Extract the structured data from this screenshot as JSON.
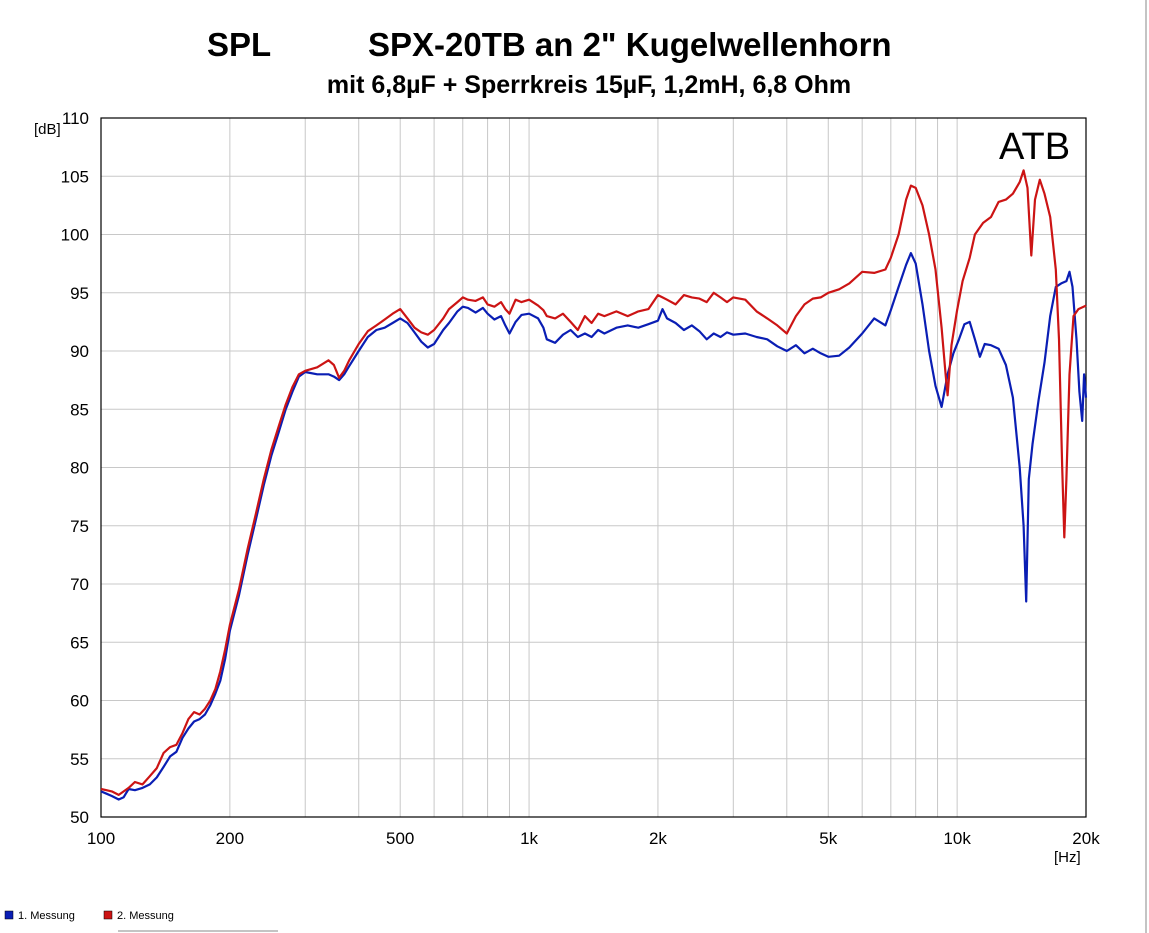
{
  "chart_data": {
    "type": "line",
    "title_left": "SPL",
    "title": "SPX-20TB  an 2\" Kugelwellenhorn",
    "subtitle": "mit 6,8µF + Sperrkreis 15µF, 1,2mH, 6,8 Ohm",
    "annotation": "ATB",
    "ylabel": "[dB]",
    "xlabel": "[Hz]",
    "x_scale": "log",
    "xlim": [
      100,
      20000
    ],
    "ylim": [
      50,
      110
    ],
    "grid": true,
    "legend_position": "bottom-left",
    "x_ticks": [
      {
        "value": 100,
        "label": "100"
      },
      {
        "value": 200,
        "label": "200"
      },
      {
        "value": 500,
        "label": "500"
      },
      {
        "value": 1000,
        "label": "1k"
      },
      {
        "value": 2000,
        "label": "2k"
      },
      {
        "value": 5000,
        "label": "5k"
      },
      {
        "value": 10000,
        "label": "10k"
      },
      {
        "value": 20000,
        "label": "20k"
      }
    ],
    "y_ticks": [
      {
        "value": 110,
        "label": "110"
      },
      {
        "value": 105,
        "label": "105"
      },
      {
        "value": 100,
        "label": "100"
      },
      {
        "value": 95,
        "label": "95"
      },
      {
        "value": 90,
        "label": "90"
      },
      {
        "value": 85,
        "label": "85"
      },
      {
        "value": 80,
        "label": "80"
      },
      {
        "value": 75,
        "label": "75"
      },
      {
        "value": 70,
        "label": "70"
      },
      {
        "value": 65,
        "label": "65"
      },
      {
        "value": 60,
        "label": "60"
      },
      {
        "value": 55,
        "label": "55"
      },
      {
        "value": 50,
        "label": "50"
      }
    ],
    "series": [
      {
        "name": "1. Messung",
        "color": "#0a1eb4",
        "points": [
          [
            100,
            52.2
          ],
          [
            103,
            52.0
          ],
          [
            106,
            51.8
          ],
          [
            110,
            51.5
          ],
          [
            113,
            51.7
          ],
          [
            116,
            52.4
          ],
          [
            120,
            52.3
          ],
          [
            125,
            52.5
          ],
          [
            130,
            52.8
          ],
          [
            135,
            53.4
          ],
          [
            140,
            54.3
          ],
          [
            145,
            55.2
          ],
          [
            150,
            55.6
          ],
          [
            155,
            56.8
          ],
          [
            160,
            57.6
          ],
          [
            165,
            58.2
          ],
          [
            170,
            58.4
          ],
          [
            175,
            58.8
          ],
          [
            180,
            59.6
          ],
          [
            185,
            60.6
          ],
          [
            190,
            61.7
          ],
          [
            195,
            63.6
          ],
          [
            200,
            66.0
          ],
          [
            210,
            69.0
          ],
          [
            220,
            72.5
          ],
          [
            230,
            75.5
          ],
          [
            240,
            78.5
          ],
          [
            250,
            81.0
          ],
          [
            260,
            83.0
          ],
          [
            270,
            85.0
          ],
          [
            280,
            86.5
          ],
          [
            290,
            87.8
          ],
          [
            300,
            88.2
          ],
          [
            320,
            88.0
          ],
          [
            340,
            88.0
          ],
          [
            350,
            87.8
          ],
          [
            360,
            87.5
          ],
          [
            370,
            88.0
          ],
          [
            380,
            88.7
          ],
          [
            400,
            90.0
          ],
          [
            420,
            91.2
          ],
          [
            440,
            91.8
          ],
          [
            460,
            92.0
          ],
          [
            480,
            92.4
          ],
          [
            500,
            92.8
          ],
          [
            520,
            92.4
          ],
          [
            540,
            91.6
          ],
          [
            560,
            90.8
          ],
          [
            580,
            90.3
          ],
          [
            600,
            90.6
          ],
          [
            630,
            91.8
          ],
          [
            650,
            92.4
          ],
          [
            680,
            93.4
          ],
          [
            700,
            93.8
          ],
          [
            720,
            93.7
          ],
          [
            750,
            93.3
          ],
          [
            780,
            93.7
          ],
          [
            800,
            93.2
          ],
          [
            830,
            92.7
          ],
          [
            860,
            93.0
          ],
          [
            880,
            92.2
          ],
          [
            900,
            91.5
          ],
          [
            930,
            92.5
          ],
          [
            960,
            93.1
          ],
          [
            1000,
            93.2
          ],
          [
            1050,
            92.8
          ],
          [
            1080,
            92.0
          ],
          [
            1100,
            91.0
          ],
          [
            1150,
            90.7
          ],
          [
            1200,
            91.4
          ],
          [
            1250,
            91.8
          ],
          [
            1300,
            91.2
          ],
          [
            1350,
            91.5
          ],
          [
            1400,
            91.2
          ],
          [
            1450,
            91.8
          ],
          [
            1500,
            91.5
          ],
          [
            1600,
            92.0
          ],
          [
            1700,
            92.2
          ],
          [
            1800,
            92.0
          ],
          [
            1900,
            92.3
          ],
          [
            2000,
            92.6
          ],
          [
            2050,
            93.6
          ],
          [
            2100,
            92.8
          ],
          [
            2200,
            92.4
          ],
          [
            2300,
            91.8
          ],
          [
            2400,
            92.2
          ],
          [
            2500,
            91.7
          ],
          [
            2600,
            91.0
          ],
          [
            2700,
            91.5
          ],
          [
            2800,
            91.2
          ],
          [
            2900,
            91.6
          ],
          [
            3000,
            91.4
          ],
          [
            3200,
            91.5
          ],
          [
            3400,
            91.2
          ],
          [
            3600,
            91.0
          ],
          [
            3800,
            90.4
          ],
          [
            4000,
            90.0
          ],
          [
            4200,
            90.5
          ],
          [
            4400,
            89.8
          ],
          [
            4600,
            90.2
          ],
          [
            4800,
            89.8
          ],
          [
            5000,
            89.5
          ],
          [
            5300,
            89.6
          ],
          [
            5600,
            90.3
          ],
          [
            6000,
            91.5
          ],
          [
            6400,
            92.8
          ],
          [
            6800,
            92.2
          ],
          [
            7000,
            93.5
          ],
          [
            7300,
            95.5
          ],
          [
            7600,
            97.4
          ],
          [
            7800,
            98.4
          ],
          [
            8000,
            97.5
          ],
          [
            8300,
            94.0
          ],
          [
            8600,
            90.0
          ],
          [
            8900,
            87.0
          ],
          [
            9200,
            85.2
          ],
          [
            9500,
            88.0
          ],
          [
            9800,
            89.8
          ],
          [
            10100,
            91.0
          ],
          [
            10400,
            92.3
          ],
          [
            10700,
            92.5
          ],
          [
            11000,
            91.0
          ],
          [
            11300,
            89.5
          ],
          [
            11600,
            90.6
          ],
          [
            12000,
            90.5
          ],
          [
            12500,
            90.2
          ],
          [
            13000,
            88.8
          ],
          [
            13500,
            86.0
          ],
          [
            14000,
            80.0
          ],
          [
            14300,
            75.0
          ],
          [
            14500,
            68.5
          ],
          [
            14700,
            79.0
          ],
          [
            15000,
            82.0
          ],
          [
            15500,
            85.8
          ],
          [
            16000,
            89.0
          ],
          [
            16500,
            93.0
          ],
          [
            17000,
            95.5
          ],
          [
            17500,
            95.8
          ],
          [
            18000,
            96.0
          ],
          [
            18300,
            96.8
          ],
          [
            18600,
            95.5
          ],
          [
            19000,
            91.0
          ],
          [
            19300,
            86.5
          ],
          [
            19600,
            84.0
          ],
          [
            19800,
            88.0
          ],
          [
            20000,
            86.0
          ]
        ]
      },
      {
        "name": "2. Messung",
        "color": "#cc1414",
        "points": [
          [
            100,
            52.4
          ],
          [
            103,
            52.3
          ],
          [
            106,
            52.2
          ],
          [
            110,
            51.9
          ],
          [
            113,
            52.2
          ],
          [
            116,
            52.5
          ],
          [
            120,
            53.0
          ],
          [
            125,
            52.8
          ],
          [
            130,
            53.5
          ],
          [
            135,
            54.2
          ],
          [
            140,
            55.5
          ],
          [
            145,
            56.0
          ],
          [
            150,
            56.2
          ],
          [
            155,
            57.2
          ],
          [
            160,
            58.4
          ],
          [
            165,
            59.0
          ],
          [
            170,
            58.8
          ],
          [
            175,
            59.3
          ],
          [
            180,
            60.0
          ],
          [
            185,
            61.0
          ],
          [
            190,
            62.5
          ],
          [
            195,
            64.4
          ],
          [
            200,
            66.5
          ],
          [
            210,
            69.5
          ],
          [
            220,
            73.0
          ],
          [
            230,
            76.0
          ],
          [
            240,
            79.0
          ],
          [
            250,
            81.5
          ],
          [
            260,
            83.5
          ],
          [
            270,
            85.4
          ],
          [
            280,
            86.9
          ],
          [
            290,
            88.0
          ],
          [
            300,
            88.3
          ],
          [
            320,
            88.6
          ],
          [
            340,
            89.2
          ],
          [
            350,
            88.8
          ],
          [
            360,
            87.7
          ],
          [
            370,
            88.3
          ],
          [
            380,
            89.2
          ],
          [
            400,
            90.6
          ],
          [
            420,
            91.7
          ],
          [
            440,
            92.2
          ],
          [
            460,
            92.7
          ],
          [
            480,
            93.2
          ],
          [
            500,
            93.6
          ],
          [
            520,
            92.8
          ],
          [
            540,
            92.0
          ],
          [
            560,
            91.6
          ],
          [
            580,
            91.4
          ],
          [
            600,
            91.8
          ],
          [
            630,
            92.8
          ],
          [
            650,
            93.6
          ],
          [
            680,
            94.2
          ],
          [
            700,
            94.6
          ],
          [
            720,
            94.4
          ],
          [
            750,
            94.3
          ],
          [
            780,
            94.6
          ],
          [
            800,
            94.0
          ],
          [
            830,
            93.8
          ],
          [
            860,
            94.2
          ],
          [
            880,
            93.6
          ],
          [
            900,
            93.2
          ],
          [
            930,
            94.4
          ],
          [
            960,
            94.2
          ],
          [
            1000,
            94.4
          ],
          [
            1050,
            93.9
          ],
          [
            1080,
            93.5
          ],
          [
            1100,
            93.0
          ],
          [
            1150,
            92.8
          ],
          [
            1200,
            93.2
          ],
          [
            1250,
            92.5
          ],
          [
            1300,
            91.8
          ],
          [
            1350,
            93.0
          ],
          [
            1400,
            92.4
          ],
          [
            1450,
            93.2
          ],
          [
            1500,
            93.0
          ],
          [
            1600,
            93.4
          ],
          [
            1700,
            93.0
          ],
          [
            1800,
            93.4
          ],
          [
            1900,
            93.6
          ],
          [
            2000,
            94.8
          ],
          [
            2050,
            94.6
          ],
          [
            2100,
            94.4
          ],
          [
            2200,
            94.0
          ],
          [
            2300,
            94.8
          ],
          [
            2400,
            94.6
          ],
          [
            2500,
            94.5
          ],
          [
            2600,
            94.2
          ],
          [
            2700,
            95.0
          ],
          [
            2800,
            94.6
          ],
          [
            2900,
            94.2
          ],
          [
            3000,
            94.6
          ],
          [
            3200,
            94.4
          ],
          [
            3400,
            93.4
          ],
          [
            3600,
            92.8
          ],
          [
            3800,
            92.2
          ],
          [
            4000,
            91.5
          ],
          [
            4200,
            93.0
          ],
          [
            4400,
            94.0
          ],
          [
            4600,
            94.5
          ],
          [
            4800,
            94.6
          ],
          [
            5000,
            95.0
          ],
          [
            5300,
            95.3
          ],
          [
            5600,
            95.8
          ],
          [
            6000,
            96.8
          ],
          [
            6400,
            96.7
          ],
          [
            6800,
            97.0
          ],
          [
            7000,
            98.0
          ],
          [
            7300,
            100.0
          ],
          [
            7600,
            103.0
          ],
          [
            7800,
            104.2
          ],
          [
            8000,
            104.0
          ],
          [
            8300,
            102.5
          ],
          [
            8600,
            100.0
          ],
          [
            8900,
            97.0
          ],
          [
            9200,
            92.0
          ],
          [
            9400,
            88.0
          ],
          [
            9500,
            86.2
          ],
          [
            9700,
            90.5
          ],
          [
            10000,
            93.5
          ],
          [
            10300,
            96.0
          ],
          [
            10700,
            98.0
          ],
          [
            11000,
            100.0
          ],
          [
            11500,
            101.0
          ],
          [
            12000,
            101.5
          ],
          [
            12500,
            102.8
          ],
          [
            13000,
            103.0
          ],
          [
            13500,
            103.5
          ],
          [
            14000,
            104.5
          ],
          [
            14300,
            105.5
          ],
          [
            14600,
            104.0
          ],
          [
            14900,
            98.2
          ],
          [
            15200,
            103.0
          ],
          [
            15600,
            104.7
          ],
          [
            16000,
            103.5
          ],
          [
            16500,
            101.5
          ],
          [
            17000,
            97.0
          ],
          [
            17300,
            91.0
          ],
          [
            17600,
            80.0
          ],
          [
            17800,
            74.0
          ],
          [
            18000,
            79.0
          ],
          [
            18300,
            88.0
          ],
          [
            18700,
            93.0
          ],
          [
            19200,
            93.6
          ],
          [
            20000,
            93.9
          ]
        ]
      }
    ]
  },
  "legend": [
    {
      "label": "1. Messung",
      "color": "#0a1eb4"
    },
    {
      "label": "2. Messung",
      "color": "#cc1414"
    }
  ]
}
